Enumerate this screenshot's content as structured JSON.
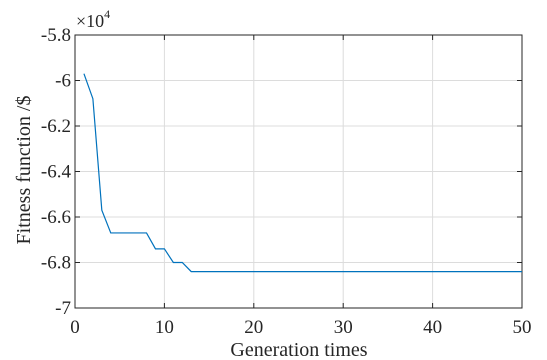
{
  "chart_data": {
    "type": "line",
    "title": "",
    "xlabel": "Generation times",
    "ylabel": "Fitness function /$",
    "xlim": [
      0,
      50
    ],
    "ylim": [
      -7.0,
      -5.8
    ],
    "y_exponent_label": {
      "base": "×10",
      "power": "4"
    },
    "xticks": [
      0,
      10,
      20,
      30,
      40,
      50
    ],
    "xtick_labels": [
      "0",
      "10",
      "20",
      "30",
      "40",
      "50"
    ],
    "yticks": [
      -5.8,
      -6.0,
      -6.2,
      -6.4,
      -6.6,
      -6.8,
      -7.0
    ],
    "ytick_labels": [
      "-5.8",
      "-6",
      "-6.2",
      "-6.4",
      "-6.6",
      "-6.8",
      "-7"
    ],
    "grid": true,
    "line_color": "#0072BD",
    "series": [
      {
        "x": [
          1,
          2,
          3,
          4,
          5,
          6,
          7,
          8,
          9,
          10,
          11,
          12,
          13,
          14,
          15,
          16,
          17,
          18,
          19,
          20,
          21,
          22,
          23,
          24,
          25,
          26,
          27,
          28,
          29,
          30,
          31,
          32,
          33,
          34,
          35,
          36,
          37,
          38,
          39,
          40,
          41,
          42,
          43,
          44,
          45,
          46,
          47,
          48,
          49,
          50
        ],
        "y": [
          -5.97,
          -6.08,
          -6.57,
          -6.67,
          -6.67,
          -6.67,
          -6.67,
          -6.67,
          -6.74,
          -6.74,
          -6.8,
          -6.8,
          -6.84,
          -6.84,
          -6.84,
          -6.84,
          -6.84,
          -6.84,
          -6.84,
          -6.84,
          -6.84,
          -6.84,
          -6.84,
          -6.84,
          -6.84,
          -6.84,
          -6.84,
          -6.84,
          -6.84,
          -6.84,
          -6.84,
          -6.84,
          -6.84,
          -6.84,
          -6.84,
          -6.84,
          -6.84,
          -6.84,
          -6.84,
          -6.84,
          -6.84,
          -6.84,
          -6.84,
          -6.84,
          -6.84,
          -6.84,
          -6.84,
          -6.84,
          -6.84,
          -6.84
        ]
      }
    ]
  }
}
